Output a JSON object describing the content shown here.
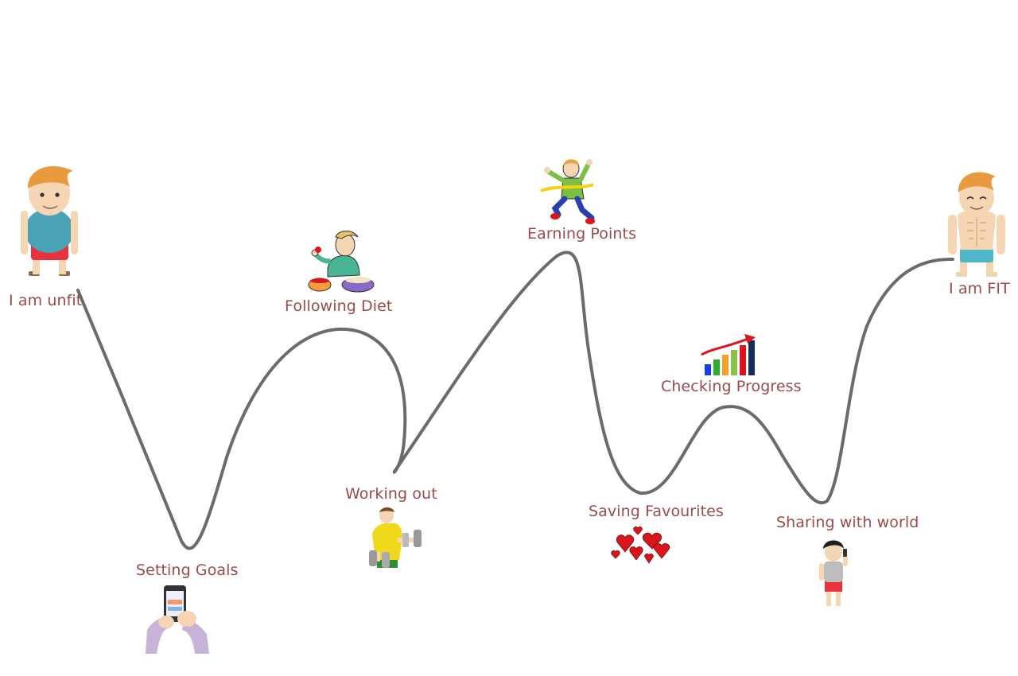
{
  "journey": {
    "steps": [
      {
        "id": "start",
        "label": "I am unfit",
        "icon": "unfit-man-icon"
      },
      {
        "id": "goals",
        "label": "Setting Goals",
        "icon": "phone-in-hands-icon"
      },
      {
        "id": "diet",
        "label": "Following Diet",
        "icon": "man-eating-icon"
      },
      {
        "id": "workout",
        "label": "Working out",
        "icon": "man-with-dumbbells-icon"
      },
      {
        "id": "points",
        "label": "Earning Points",
        "icon": "boy-crossing-finish-line-icon"
      },
      {
        "id": "favourites",
        "label": "Saving Favourites",
        "icon": "red-hearts-icon"
      },
      {
        "id": "progress",
        "label": "Checking Progress",
        "icon": "rising-bar-chart-icon"
      },
      {
        "id": "sharing",
        "label": "Sharing with world",
        "icon": "boy-on-phone-icon"
      },
      {
        "id": "end",
        "label": "I am FIT",
        "icon": "fit-man-icon"
      }
    ]
  },
  "colors": {
    "label": "#9b4b4b",
    "curve": "#6b6b6b",
    "skin": "#f6d5b3",
    "hair": "#e89a3c",
    "tank_top": "#4aa3b5",
    "shorts_red": "#e8323c",
    "shorts_teal": "#4fb6c8",
    "heart": "#d8161c"
  }
}
